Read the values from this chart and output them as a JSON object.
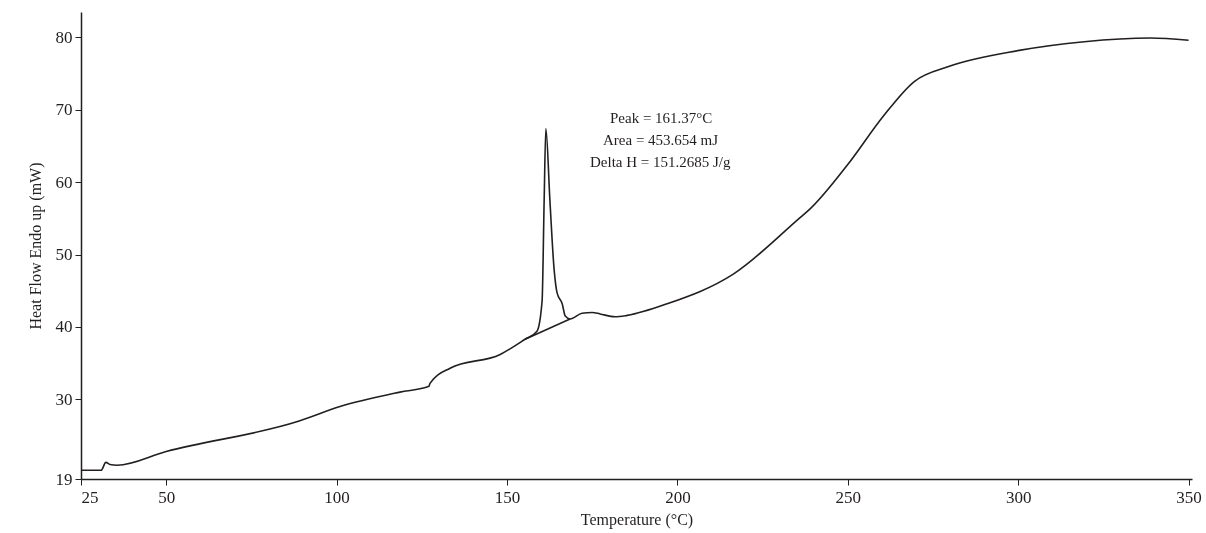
{
  "chart_data": {
    "type": "line",
    "xlabel": "Temperature (°C)",
    "ylabel": "Heat Flow Endo up (mW)",
    "xlim": [
      25,
      351
    ],
    "xticks": [
      25,
      50,
      100,
      150,
      200,
      250,
      300,
      350
    ],
    "ylim": [
      19,
      83.5
    ],
    "yticks": [
      19,
      30,
      40,
      50,
      60,
      70,
      80
    ],
    "grid": false,
    "marker": "none",
    "line_style": "solid",
    "annotations": [
      "Peak = 161.37°C",
      "Area = 453.654 mJ",
      "Delta H = 151.2685 J/g"
    ],
    "series": [
      {
        "color": "#231f20",
        "x": [
          25,
          30.9,
          32.3,
          33.5,
          35.6,
          50,
          89,
          101,
          118.6,
          127.1,
          127.4,
          133.3,
          148,
          155.3,
          158.8,
          160.3,
          160.9,
          161.4,
          162.6,
          163.8,
          164.7,
          166.2,
          167.1,
          168.5,
          172.0,
          175.0,
          177.3,
          181.7,
          185.3,
          197.0,
          216.4,
          236.0,
          238.7,
          250.1,
          260.4,
          269.5,
          279.8,
          300.3,
          319.4,
          338.8,
          350
        ],
        "values": [
          20.2,
          20.2,
          21.3,
          21.0,
          20.9,
          22.8,
          27.0,
          29.0,
          31.0,
          31.8,
          32.2,
          34.3,
          36.2,
          38.3,
          39.4,
          43.6,
          57.4,
          67.4,
          57.4,
          48.1,
          44.7,
          43.2,
          41.5,
          41.1,
          41.9,
          42.0,
          41.8,
          41.4,
          41.6,
          43.2,
          47.3,
          55.1,
          56.2,
          62.5,
          69.1,
          73.9,
          76.0,
          78.2,
          79.4,
          79.9,
          79.6
        ]
      },
      {
        "color": "#231f20",
        "x": [
          155.3,
          168.5
        ],
        "values": [
          38.3,
          41.1
        ]
      }
    ]
  }
}
